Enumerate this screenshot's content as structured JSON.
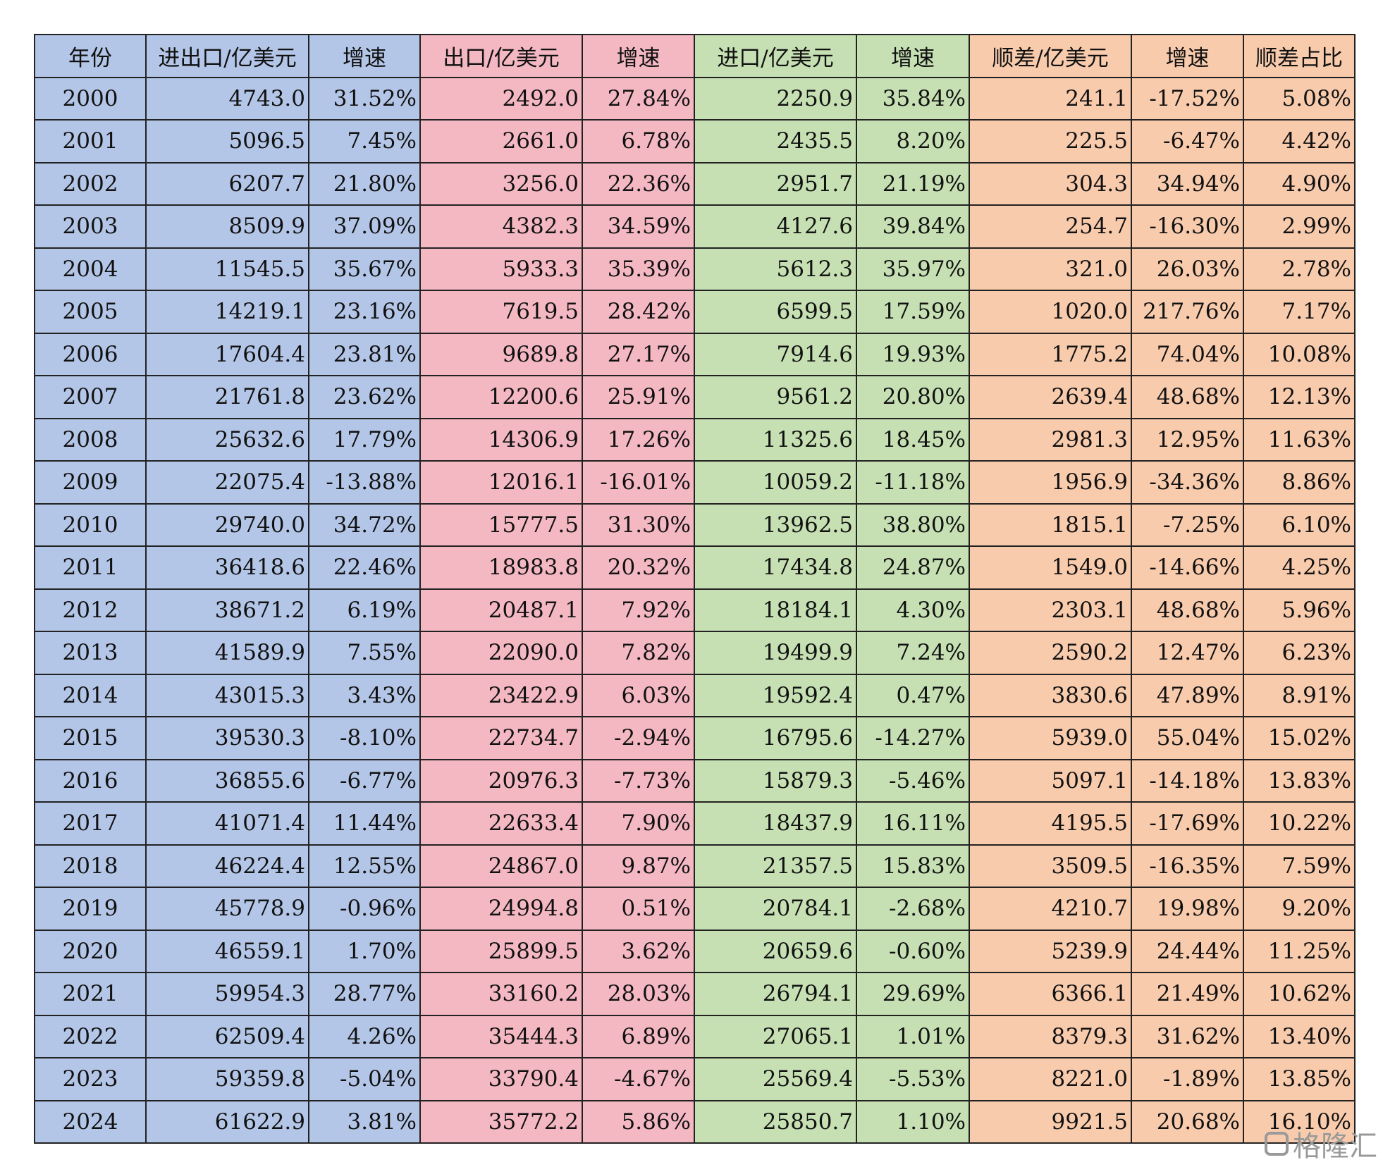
{
  "table": {
    "header": [
      "年份",
      "进出口/亿美元",
      "增速",
      "出口/亿美元",
      "增速",
      "进口/亿美元",
      "增速",
      "顺差/亿美元",
      "增速",
      "顺差占比"
    ],
    "rows": [
      [
        "2000",
        "4743.0",
        "31.52%",
        "2492.0",
        "27.84%",
        "2250.9",
        "35.84%",
        "241.1",
        "-17.52%",
        "5.08%"
      ],
      [
        "2001",
        "5096.5",
        "7.45%",
        "2661.0",
        "6.78%",
        "2435.5",
        "8.20%",
        "225.5",
        "-6.47%",
        "4.42%"
      ],
      [
        "2002",
        "6207.7",
        "21.80%",
        "3256.0",
        "22.36%",
        "2951.7",
        "21.19%",
        "304.3",
        "34.94%",
        "4.90%"
      ],
      [
        "2003",
        "8509.9",
        "37.09%",
        "4382.3",
        "34.59%",
        "4127.6",
        "39.84%",
        "254.7",
        "-16.30%",
        "2.99%"
      ],
      [
        "2004",
        "11545.5",
        "35.67%",
        "5933.3",
        "35.39%",
        "5612.3",
        "35.97%",
        "321.0",
        "26.03%",
        "2.78%"
      ],
      [
        "2005",
        "14219.1",
        "23.16%",
        "7619.5",
        "28.42%",
        "6599.5",
        "17.59%",
        "1020.0",
        "217.76%",
        "7.17%"
      ],
      [
        "2006",
        "17604.4",
        "23.81%",
        "9689.8",
        "27.17%",
        "7914.6",
        "19.93%",
        "1775.2",
        "74.04%",
        "10.08%"
      ],
      [
        "2007",
        "21761.8",
        "23.62%",
        "12200.6",
        "25.91%",
        "9561.2",
        "20.80%",
        "2639.4",
        "48.68%",
        "12.13%"
      ],
      [
        "2008",
        "25632.6",
        "17.79%",
        "14306.9",
        "17.26%",
        "11325.6",
        "18.45%",
        "2981.3",
        "12.95%",
        "11.63%"
      ],
      [
        "2009",
        "22075.4",
        "-13.88%",
        "12016.1",
        "-16.01%",
        "10059.2",
        "-11.18%",
        "1956.9",
        "-34.36%",
        "8.86%"
      ],
      [
        "2010",
        "29740.0",
        "34.72%",
        "15777.5",
        "31.30%",
        "13962.5",
        "38.80%",
        "1815.1",
        "-7.25%",
        "6.10%"
      ],
      [
        "2011",
        "36418.6",
        "22.46%",
        "18983.8",
        "20.32%",
        "17434.8",
        "24.87%",
        "1549.0",
        "-14.66%",
        "4.25%"
      ],
      [
        "2012",
        "38671.2",
        "6.19%",
        "20487.1",
        "7.92%",
        "18184.1",
        "4.30%",
        "2303.1",
        "48.68%",
        "5.96%"
      ],
      [
        "2013",
        "41589.9",
        "7.55%",
        "22090.0",
        "7.82%",
        "19499.9",
        "7.24%",
        "2590.2",
        "12.47%",
        "6.23%"
      ],
      [
        "2014",
        "43015.3",
        "3.43%",
        "23422.9",
        "6.03%",
        "19592.4",
        "0.47%",
        "3830.6",
        "47.89%",
        "8.91%"
      ],
      [
        "2015",
        "39530.3",
        "-8.10%",
        "22734.7",
        "-2.94%",
        "16795.6",
        "-14.27%",
        "5939.0",
        "55.04%",
        "15.02%"
      ],
      [
        "2016",
        "36855.6",
        "-6.77%",
        "20976.3",
        "-7.73%",
        "15879.3",
        "-5.46%",
        "5097.1",
        "-14.18%",
        "13.83%"
      ],
      [
        "2017",
        "41071.4",
        "11.44%",
        "22633.4",
        "7.90%",
        "18437.9",
        "16.11%",
        "4195.5",
        "-17.69%",
        "10.22%"
      ],
      [
        "2018",
        "46224.4",
        "12.55%",
        "24867.0",
        "9.87%",
        "21357.5",
        "15.83%",
        "3509.5",
        "-16.35%",
        "7.59%"
      ],
      [
        "2019",
        "45778.9",
        "-0.96%",
        "24994.8",
        "0.51%",
        "20784.1",
        "-2.68%",
        "4210.7",
        "19.98%",
        "9.20%"
      ],
      [
        "2020",
        "46559.1",
        "1.70%",
        "25899.5",
        "3.62%",
        "20659.6",
        "-0.60%",
        "5239.9",
        "24.44%",
        "11.25%"
      ],
      [
        "2021",
        "59954.3",
        "28.77%",
        "33160.2",
        "28.03%",
        "26794.1",
        "29.69%",
        "6366.1",
        "21.49%",
        "10.62%"
      ],
      [
        "2022",
        "62509.4",
        "4.26%",
        "35444.3",
        "6.89%",
        "27065.1",
        "1.01%",
        "8379.3",
        "31.62%",
        "13.40%"
      ],
      [
        "2023",
        "59359.8",
        "-5.04%",
        "33790.4",
        "-4.67%",
        "25569.4",
        "-5.53%",
        "8221.0",
        "-1.89%",
        "13.85%"
      ],
      [
        "2024",
        "61622.9",
        "3.81%",
        "35772.2",
        "5.86%",
        "25850.7",
        "1.10%",
        "9921.5",
        "20.68%",
        "16.10%"
      ]
    ]
  },
  "watermark": "格隆汇"
}
